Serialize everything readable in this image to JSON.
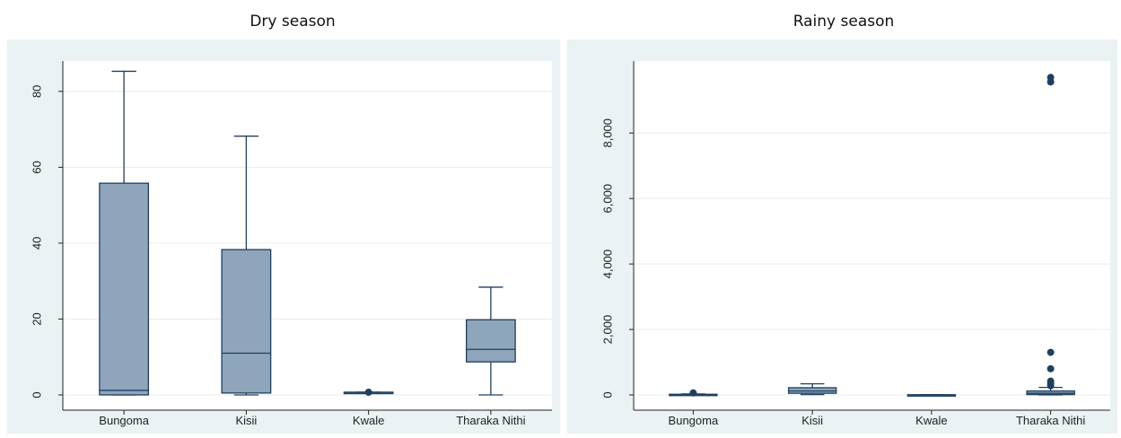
{
  "chart_data": [
    {
      "type": "box",
      "title": "Dry season",
      "categories": [
        "Bungoma",
        "Kisii",
        "Kwale",
        "Tharaka Nithi"
      ],
      "ylim": [
        0,
        88
      ],
      "yticks": [
        0,
        20,
        40,
        60,
        80
      ],
      "ytick_labels": [
        "0",
        "20",
        "40",
        "60",
        "80"
      ],
      "grid": true,
      "box_color": "#8fa5bb",
      "line_color": "#1f3f5f",
      "boxes": [
        {
          "category": "Bungoma",
          "whisker_low": 0,
          "q1": 0,
          "median": 1.2,
          "q3": 55.8,
          "whisker_high": 85.3,
          "outliers": []
        },
        {
          "category": "Kisii",
          "whisker_low": 0,
          "q1": 0.5,
          "median": 11,
          "q3": 38.3,
          "whisker_high": 68.2,
          "outliers": []
        },
        {
          "category": "Kwale",
          "whisker_low": 0.7,
          "q1": 0.7,
          "median": 0.7,
          "q3": 0.7,
          "whisker_high": 0.7,
          "outliers": [
            0.7
          ]
        },
        {
          "category": "Tharaka Nithi",
          "whisker_low": 0,
          "q1": 8.7,
          "median": 12,
          "q3": 19.8,
          "whisker_high": 28.4,
          "outliers": []
        }
      ]
    },
    {
      "type": "box",
      "title": "Rainy season",
      "categories": [
        "Bungoma",
        "Kisii",
        "Kwale",
        "Tharaka Nithi"
      ],
      "ylim": [
        0,
        10200
      ],
      "yticks": [
        0,
        2000,
        4000,
        6000,
        8000
      ],
      "ytick_labels": [
        "0",
        "2,000",
        "4,000",
        "6,000",
        "8,000"
      ],
      "grid": true,
      "box_color": "#8fa5bb",
      "line_color": "#1f3f5f",
      "boxes": [
        {
          "category": "Bungoma",
          "whisker_low": 0,
          "q1": 0,
          "median": 5,
          "q3": 20,
          "whisker_high": 30,
          "outliers": [
            60
          ]
        },
        {
          "category": "Kisii",
          "whisker_low": 10,
          "q1": 50,
          "median": 120,
          "q3": 220,
          "whisker_high": 340,
          "outliers": []
        },
        {
          "category": "Kwale",
          "whisker_low": 0,
          "q1": 0,
          "median": 2,
          "q3": 5,
          "whisker_high": 8,
          "outliers": []
        },
        {
          "category": "Tharaka Nithi",
          "whisker_low": 0,
          "q1": 10,
          "median": 50,
          "q3": 120,
          "whisker_high": 230,
          "outliers": [
            280,
            350,
            420,
            800,
            1300,
            9560,
            9700
          ]
        }
      ]
    }
  ]
}
